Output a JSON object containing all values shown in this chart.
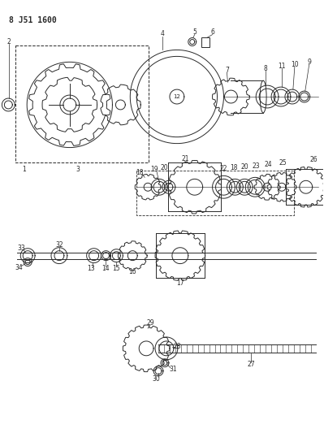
{
  "title": "8 J51 1600",
  "bg_color": "#ffffff",
  "line_color": "#2a2a2a",
  "figsize": [
    3.99,
    5.33
  ],
  "dpi": 100,
  "lw": 0.7
}
